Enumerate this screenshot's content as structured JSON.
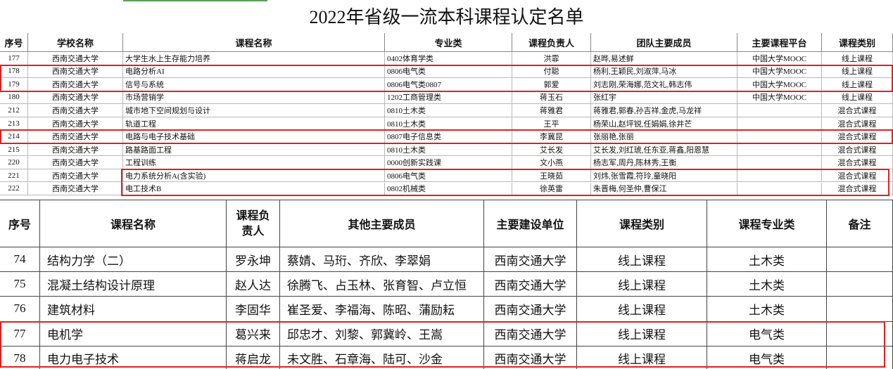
{
  "title": "2022年省级一流本科课程认定名单",
  "table1": {
    "header": [
      "序号",
      "学校名称",
      "课程名称",
      "专业类",
      "课程负责人",
      "团队主要成员",
      "主要课程平台",
      "课程类别"
    ],
    "rows": [
      {
        "no": "177",
        "school": "西南交通大学",
        "course": "大学生水上生存能力培养",
        "major": "0402体育学类",
        "lead": "洪霏",
        "team": "赵晔,易述鲜",
        "platform": "中国大学MOOC",
        "type": "线上课程"
      },
      {
        "no": "178",
        "school": "西南交通大学",
        "course": "电路分析AI",
        "major": "0806电气类",
        "lead": "付聪",
        "team": "杨利,王颖民,刘淑萍,马冰",
        "platform": "中国大学MOOC",
        "type": "线上课程"
      },
      {
        "no": "179",
        "school": "西南交通大学",
        "course": "信号与系统",
        "major": "0806电气类0807",
        "lead": "郭爱",
        "team": "刘志刚,荣海娜,范文礼,韩志伟",
        "platform": "中国大学MOOC",
        "type": "线上课程"
      },
      {
        "no": "180",
        "school": "西南交通大学",
        "course": "市场营销学",
        "major": "1202工商管理类",
        "lead": "蒋玉石",
        "team": "张红宇",
        "platform": "中国大学MOOC",
        "type": "线上课程"
      },
      {
        "no": "212",
        "school": "西南交通大学",
        "course": "城市地下空间规划与设计",
        "major": "0810土木类",
        "lead": "蒋雅君",
        "team": "蒋雅君,郭春,孙吉祥,金虎,马龙祥",
        "type": "混合式课程"
      },
      {
        "no": "213",
        "school": "西南交通大学",
        "course": "轨道工程",
        "major": "0810土木类",
        "lead": "王平",
        "team": "杨荣山,赵坪锐,任娟娟,徐井芒",
        "type": "混合式课程"
      },
      {
        "no": "214",
        "school": "西南交通大学",
        "course": "电路与电子技术基础",
        "major": "0807电子信息类",
        "lead": "李冀昆",
        "team": "张丽艳,张丽",
        "type": "混合式课程"
      },
      {
        "no": "215",
        "school": "西南交通大学",
        "course": "路基路面工程",
        "major": "0810土木类",
        "lead": "艾长发",
        "team": "艾长发,刘红琥,任东亚,蒋鑫,阳恩慧",
        "type": "混合式课程"
      },
      {
        "no": "220",
        "school": "西南交通大学",
        "course": "工程训练",
        "major": "0000创新实践课",
        "lead": "文小燕",
        "team": "杨志军,周丹,陈林秀,王衡",
        "type": "混合式课程"
      },
      {
        "no": "221",
        "school": "西南交通大学",
        "course": "电力系统分析A(含实验)",
        "major": "0806电气类",
        "lead": "王晓茹",
        "team": "刘炜,张雪霞,符玲,童晓阳",
        "type": "混合式课程"
      },
      {
        "no": "222",
        "school": "西南交通大学",
        "course": "电工技术B",
        "major": "0802机械类",
        "lead": "徐英雷",
        "team": "朱晋梅,何圣仲,曹保江",
        "type": "混合式课程"
      }
    ]
  },
  "table2": {
    "header": [
      "序号",
      "课程名称",
      "课程负责人",
      "其他主要成员",
      "主要建设单位",
      "课程类别",
      "课程专业类",
      "备注"
    ],
    "rows": [
      {
        "no": "74",
        "course": "结构力学（二）",
        "lead": "罗永坤",
        "members": "蔡婧、马珩、齐欣、李翠娟",
        "unit": "西南交通大学",
        "type": "线上课程",
        "major": "土木类"
      },
      {
        "no": "75",
        "course": "混凝土结构设计原理",
        "lead": "赵人达",
        "members": "徐腾飞、占玉林、张育智、卢立恒",
        "unit": "西南交通大学",
        "type": "线上课程",
        "major": "土木类"
      },
      {
        "no": "76",
        "course": "建筑材料",
        "lead": "李固华",
        "members": "崔圣爱、李福海、陈昭、蒲励耘",
        "unit": "西南交通大学",
        "type": "线上课程",
        "major": "土木类"
      },
      {
        "no": "77",
        "course": "电机学",
        "lead": "葛兴来",
        "members": "邱忠才、刘黎、郭冀岭、王嵩",
        "unit": "西南交通大学",
        "type": "线上课程",
        "major": "电气类"
      },
      {
        "no": "78",
        "course": "电力电子技术",
        "lead": "蒋启龙",
        "members": "未文胜、石章海、陆可、沙金",
        "unit": "西南交通大学",
        "type": "线上课程",
        "major": "电气类"
      }
    ]
  }
}
